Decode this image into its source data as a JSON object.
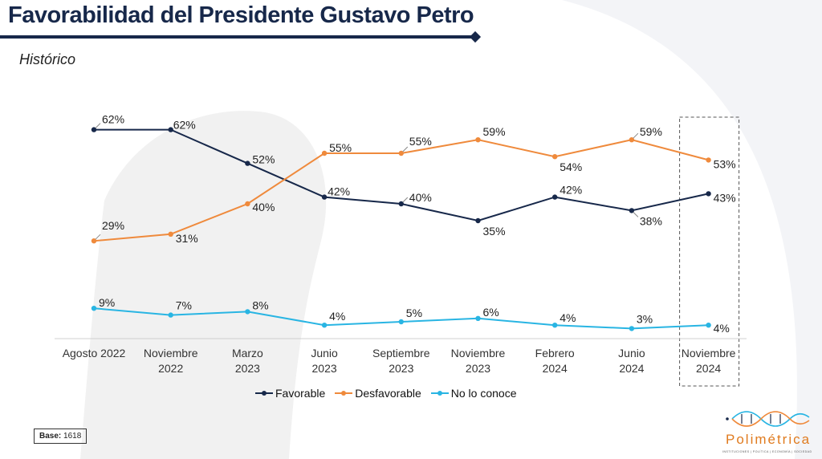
{
  "header": {
    "title": "Favorabilidad del Presidente Gustavo Petro",
    "subtitle": "Histórico"
  },
  "footer": {
    "base_label": "Base:",
    "base_value": "1618"
  },
  "logo": {
    "name": "Polimétrica",
    "tagline": "INSTITUCIONES | POLÍTICA | ECONOMÍA | SOCIEDAD"
  },
  "colors": {
    "favorable": "#17284a",
    "desfavorable": "#ef8a3c",
    "no_lo_conoce": "#29b5e3",
    "title": "#17284a"
  },
  "chart_data": {
    "type": "line",
    "title": "Favorabilidad del Presidente Gustavo Petro",
    "subtitle": "Histórico",
    "categories": [
      [
        "Agosto 2022"
      ],
      [
        "Noviembre",
        "2022"
      ],
      [
        "Marzo",
        "2023"
      ],
      [
        "Junio",
        "2023"
      ],
      [
        "Septiembre",
        "2023"
      ],
      [
        "Noviembre",
        "2023"
      ],
      [
        "Febrero",
        "2024"
      ],
      [
        "Junio",
        "2024"
      ],
      [
        "Noviembre",
        "2024"
      ]
    ],
    "ylim": [
      0,
      70
    ],
    "highlighted_category": 8,
    "legend_position": "bottom",
    "series": [
      {
        "name": "Favorable",
        "color": "#17284a",
        "values": [
          62,
          62,
          52,
          42,
          40,
          35,
          42,
          38,
          43
        ],
        "labels": [
          "62%",
          "62%",
          "52%",
          "42%",
          "40%",
          "35%",
          "42%",
          "38%",
          "43%"
        ]
      },
      {
        "name": "Desfavorable",
        "color": "#ef8a3c",
        "values": [
          29,
          31,
          40,
          55,
          55,
          59,
          54,
          59,
          53
        ],
        "labels": [
          "29%",
          "31%",
          "40%",
          "55%",
          "55%",
          "59%",
          "54%",
          "59%",
          "53%"
        ]
      },
      {
        "name": "No lo conoce",
        "color": "#29b5e3",
        "values": [
          9,
          7,
          8,
          4,
          5,
          6,
          4,
          3,
          4
        ],
        "labels": [
          "9%",
          "7%",
          "8%",
          "4%",
          "5%",
          "6%",
          "4%",
          "3%",
          "4%"
        ]
      }
    ]
  }
}
